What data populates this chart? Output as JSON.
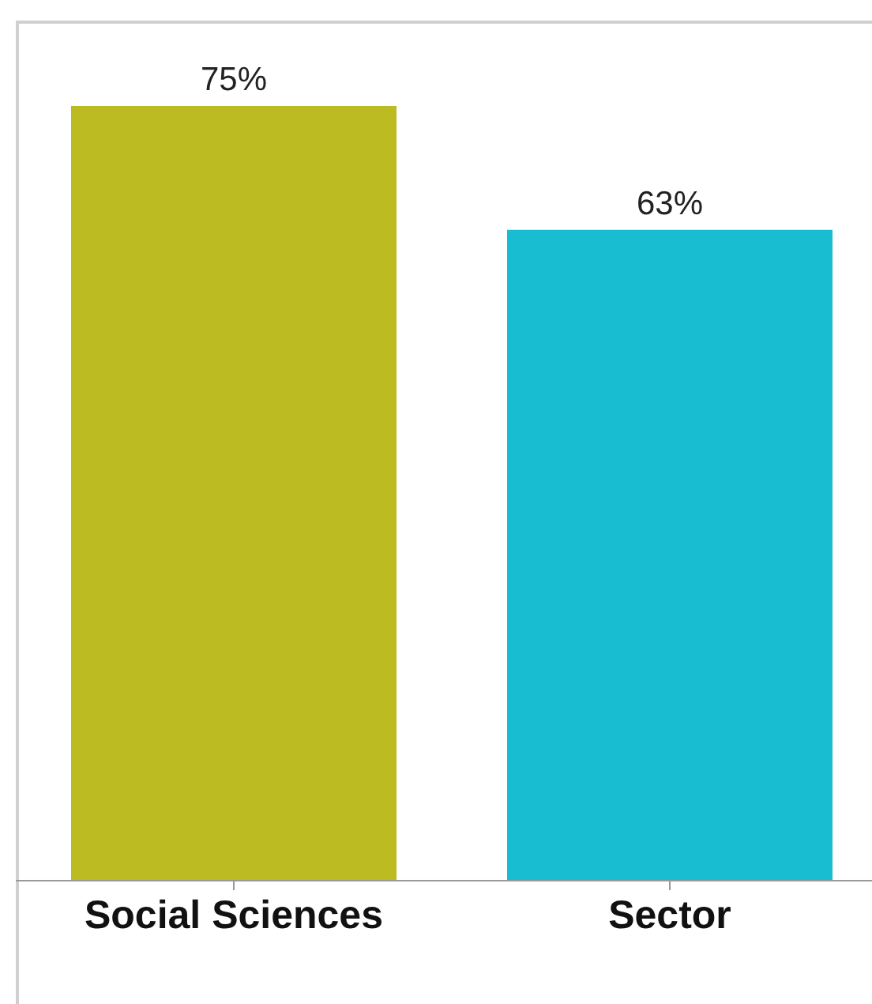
{
  "chart_data": {
    "type": "bar",
    "categories": [
      "Social Sciences",
      "Sector"
    ],
    "values": [
      75,
      63
    ],
    "colors": [
      "#bdbb22",
      "#19bdd2"
    ],
    "value_labels": [
      "75%",
      "63%"
    ]
  }
}
